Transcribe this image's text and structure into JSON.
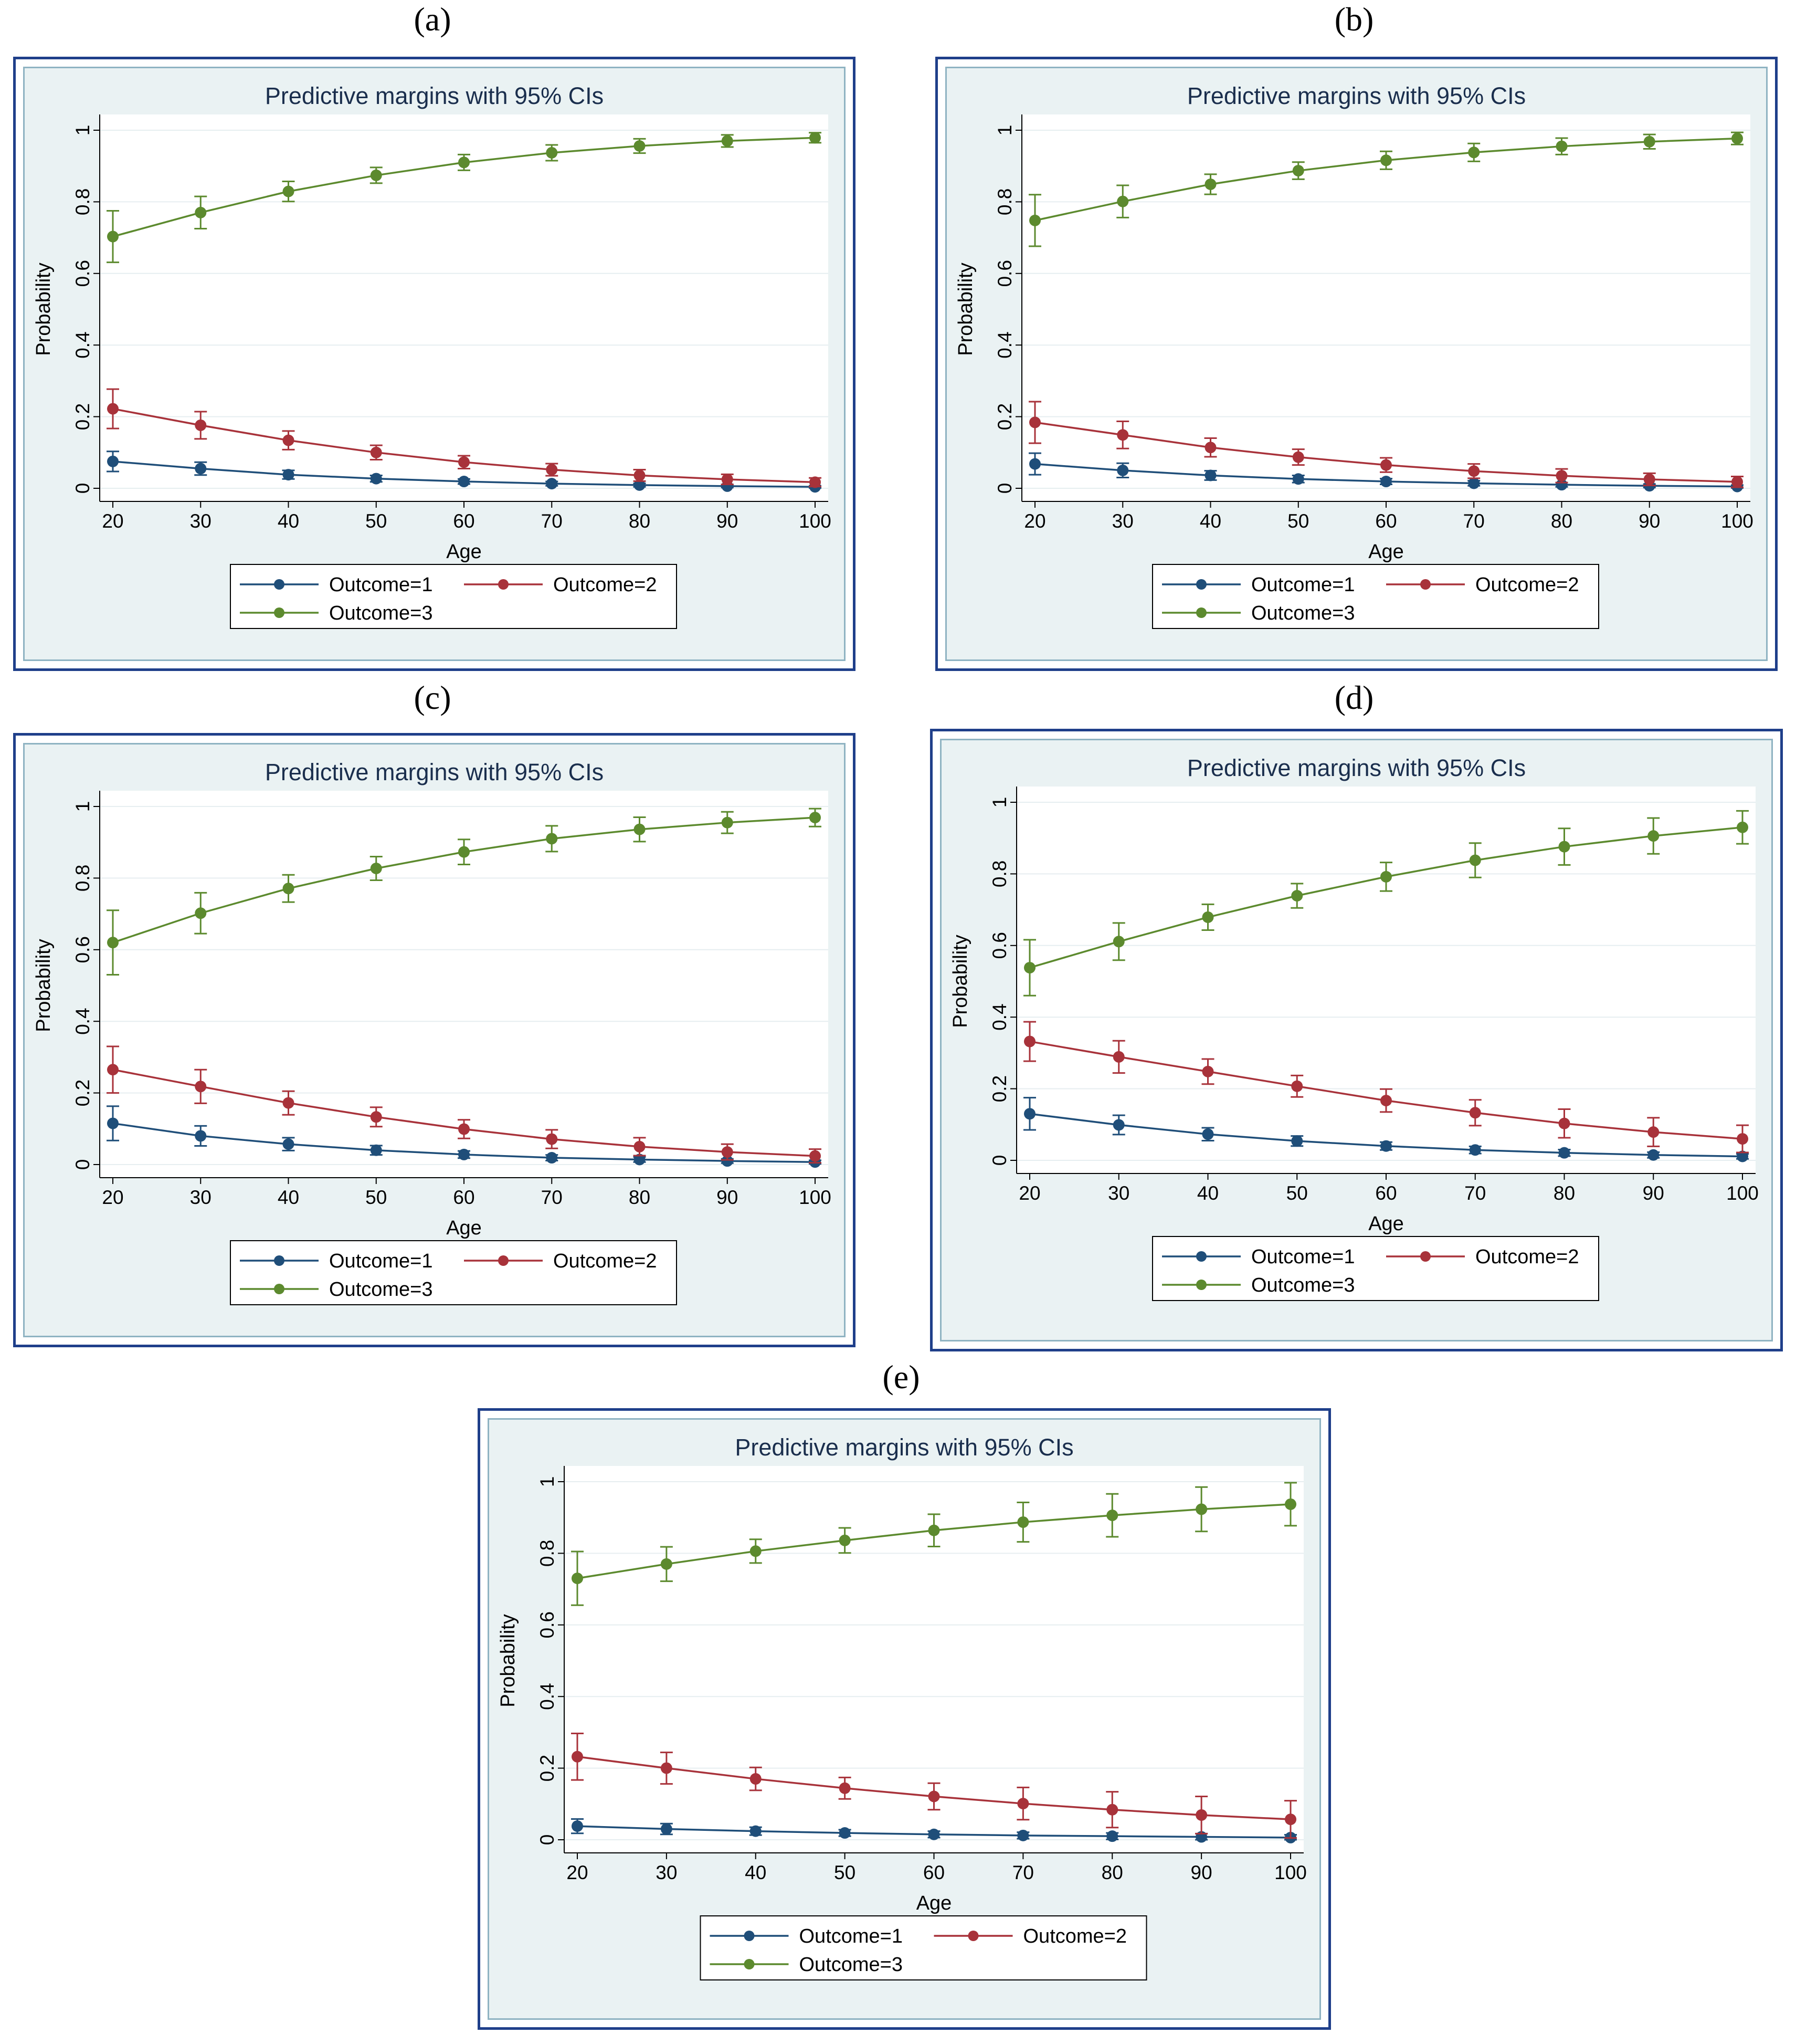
{
  "chart_data": [
    {
      "panel": "(a)",
      "type": "line",
      "title": "Predictive margins with 95% CIs",
      "xlabel": "Age",
      "ylabel": "Probability",
      "x": [
        20,
        30,
        40,
        50,
        60,
        70,
        80,
        90,
        100
      ],
      "xticks": [
        "20",
        "30",
        "40",
        "50",
        "60",
        "70",
        "80",
        "90",
        "100"
      ],
      "yticks": [
        "0",
        "0.2",
        "0.4",
        "0.6",
        "0.8",
        "1"
      ],
      "ylim": [
        0,
        1
      ],
      "series": [
        {
          "name": "Outcome=1",
          "color": "#1f4e79",
          "values": [
            0.075,
            0.055,
            0.038,
            0.027,
            0.019,
            0.013,
            0.009,
            0.006,
            0.004
          ],
          "ci": [
            0.028,
            0.018,
            0.012,
            0.009,
            0.007,
            0.006,
            0.005,
            0.004,
            0.003
          ]
        },
        {
          "name": "Outcome=2",
          "color": "#a8323a",
          "values": [
            0.222,
            0.176,
            0.134,
            0.1,
            0.073,
            0.052,
            0.036,
            0.025,
            0.017
          ],
          "ci": [
            0.055,
            0.038,
            0.026,
            0.02,
            0.018,
            0.017,
            0.016,
            0.014,
            0.012
          ]
        },
        {
          "name": "Outcome=3",
          "color": "#5c8a2e",
          "values": [
            0.703,
            0.77,
            0.829,
            0.874,
            0.91,
            0.937,
            0.956,
            0.97,
            0.979
          ],
          "ci": [
            0.072,
            0.045,
            0.028,
            0.022,
            0.022,
            0.022,
            0.02,
            0.017,
            0.014
          ]
        }
      ],
      "legend": [
        "Outcome=1",
        "Outcome=2",
        "Outcome=3"
      ]
    },
    {
      "panel": "(b)",
      "type": "line",
      "title": "Predictive margins with 95% CIs",
      "xlabel": "Age",
      "ylabel": "Probability",
      "x": [
        20,
        30,
        40,
        50,
        60,
        70,
        80,
        90,
        100
      ],
      "xticks": [
        "20",
        "30",
        "40",
        "50",
        "60",
        "70",
        "80",
        "90",
        "100"
      ],
      "yticks": [
        "0",
        "0.2",
        "0.4",
        "0.6",
        "0.8",
        "1"
      ],
      "ylim": [
        0,
        1
      ],
      "series": [
        {
          "name": "Outcome=1",
          "color": "#1f4e79",
          "values": [
            0.068,
            0.05,
            0.036,
            0.026,
            0.019,
            0.014,
            0.01,
            0.007,
            0.005
          ],
          "ci": [
            0.03,
            0.02,
            0.013,
            0.01,
            0.008,
            0.007,
            0.006,
            0.005,
            0.004
          ]
        },
        {
          "name": "Outcome=2",
          "color": "#a8323a",
          "values": [
            0.184,
            0.149,
            0.114,
            0.087,
            0.065,
            0.048,
            0.035,
            0.025,
            0.018
          ],
          "ci": [
            0.058,
            0.038,
            0.026,
            0.022,
            0.02,
            0.02,
            0.019,
            0.017,
            0.015
          ]
        },
        {
          "name": "Outcome=3",
          "color": "#5c8a2e",
          "values": [
            0.748,
            0.801,
            0.849,
            0.887,
            0.916,
            0.938,
            0.955,
            0.968,
            0.977
          ],
          "ci": [
            0.072,
            0.045,
            0.028,
            0.024,
            0.025,
            0.025,
            0.023,
            0.02,
            0.017
          ]
        }
      ],
      "legend": [
        "Outcome=1",
        "Outcome=2",
        "Outcome=3"
      ]
    },
    {
      "panel": "(c)",
      "type": "line",
      "title": "Predictive margins with 95% CIs",
      "xlabel": "Age",
      "ylabel": "Probability",
      "x": [
        20,
        30,
        40,
        50,
        60,
        70,
        80,
        90,
        100
      ],
      "xticks": [
        "20",
        "30",
        "40",
        "50",
        "60",
        "70",
        "80",
        "90",
        "100"
      ],
      "yticks": [
        "0",
        "0.2",
        "0.4",
        "0.6",
        "0.8",
        "1"
      ],
      "ylim": [
        0,
        1
      ],
      "series": [
        {
          "name": "Outcome=1",
          "color": "#1f4e79",
          "values": [
            0.115,
            0.08,
            0.057,
            0.04,
            0.028,
            0.019,
            0.014,
            0.01,
            0.007
          ],
          "ci": [
            0.048,
            0.028,
            0.018,
            0.013,
            0.01,
            0.008,
            0.007,
            0.006,
            0.005
          ]
        },
        {
          "name": "Outcome=2",
          "color": "#a8323a",
          "values": [
            0.265,
            0.218,
            0.172,
            0.133,
            0.099,
            0.071,
            0.05,
            0.035,
            0.024
          ],
          "ci": [
            0.065,
            0.047,
            0.033,
            0.027,
            0.026,
            0.026,
            0.025,
            0.022,
            0.019
          ]
        },
        {
          "name": "Outcome=3",
          "color": "#5c8a2e",
          "values": [
            0.62,
            0.702,
            0.771,
            0.827,
            0.873,
            0.91,
            0.936,
            0.955,
            0.969
          ],
          "ci": [
            0.09,
            0.057,
            0.038,
            0.033,
            0.035,
            0.036,
            0.034,
            0.03,
            0.025
          ]
        }
      ],
      "legend": [
        "Outcome=1",
        "Outcome=2",
        "Outcome=3"
      ]
    },
    {
      "panel": "(d)",
      "type": "line",
      "title": "Predictive margins with 95% CIs",
      "xlabel": "Age",
      "ylabel": "Probability",
      "x": [
        20,
        30,
        40,
        50,
        60,
        70,
        80,
        90,
        100
      ],
      "xticks": [
        "20",
        "30",
        "40",
        "50",
        "60",
        "70",
        "80",
        "90",
        "100"
      ],
      "yticks": [
        "0",
        "0.2",
        "0.4",
        "0.6",
        "0.8",
        "1"
      ],
      "ylim": [
        0,
        1
      ],
      "series": [
        {
          "name": "Outcome=1",
          "color": "#1f4e79",
          "values": [
            0.13,
            0.099,
            0.073,
            0.054,
            0.04,
            0.029,
            0.021,
            0.015,
            0.011
          ],
          "ci": [
            0.045,
            0.027,
            0.018,
            0.014,
            0.011,
            0.01,
            0.009,
            0.008,
            0.007
          ]
        },
        {
          "name": "Outcome=2",
          "color": "#a8323a",
          "values": [
            0.332,
            0.289,
            0.248,
            0.207,
            0.167,
            0.133,
            0.103,
            0.079,
            0.06
          ],
          "ci": [
            0.055,
            0.045,
            0.035,
            0.03,
            0.032,
            0.036,
            0.04,
            0.04,
            0.038
          ]
        },
        {
          "name": "Outcome=3",
          "color": "#5c8a2e",
          "values": [
            0.538,
            0.611,
            0.679,
            0.739,
            0.792,
            0.838,
            0.876,
            0.906,
            0.93
          ],
          "ci": [
            0.078,
            0.052,
            0.036,
            0.034,
            0.04,
            0.048,
            0.051,
            0.05,
            0.046
          ]
        }
      ],
      "legend": [
        "Outcome=1",
        "Outcome=2",
        "Outcome=3"
      ]
    },
    {
      "panel": "(e)",
      "type": "line",
      "title": "Predictive margins with 95% CIs",
      "xlabel": "Age",
      "ylabel": "Probability",
      "x": [
        20,
        30,
        40,
        50,
        60,
        70,
        80,
        90,
        100
      ],
      "xticks": [
        "20",
        "30",
        "40",
        "50",
        "60",
        "70",
        "80",
        "90",
        "100"
      ],
      "yticks": [
        "0",
        "0.2",
        "0.4",
        "0.6",
        "0.8",
        "1"
      ],
      "ylim": [
        0,
        1
      ],
      "series": [
        {
          "name": "Outcome=1",
          "color": "#1f4e79",
          "values": [
            0.038,
            0.03,
            0.024,
            0.019,
            0.015,
            0.012,
            0.01,
            0.008,
            0.006
          ],
          "ci": [
            0.02,
            0.015,
            0.011,
            0.009,
            0.009,
            0.009,
            0.009,
            0.009,
            0.008
          ]
        },
        {
          "name": "Outcome=2",
          "color": "#a8323a",
          "values": [
            0.232,
            0.2,
            0.17,
            0.144,
            0.121,
            0.101,
            0.084,
            0.069,
            0.057
          ],
          "ci": [
            0.065,
            0.044,
            0.032,
            0.03,
            0.037,
            0.045,
            0.05,
            0.052,
            0.052
          ]
        },
        {
          "name": "Outcome=3",
          "color": "#5c8a2e",
          "values": [
            0.73,
            0.77,
            0.806,
            0.836,
            0.864,
            0.887,
            0.906,
            0.923,
            0.937
          ],
          "ci": [
            0.075,
            0.048,
            0.033,
            0.035,
            0.045,
            0.055,
            0.06,
            0.062,
            0.06
          ]
        }
      ],
      "legend": [
        "Outcome=1",
        "Outcome=2",
        "Outcome=3"
      ]
    }
  ]
}
